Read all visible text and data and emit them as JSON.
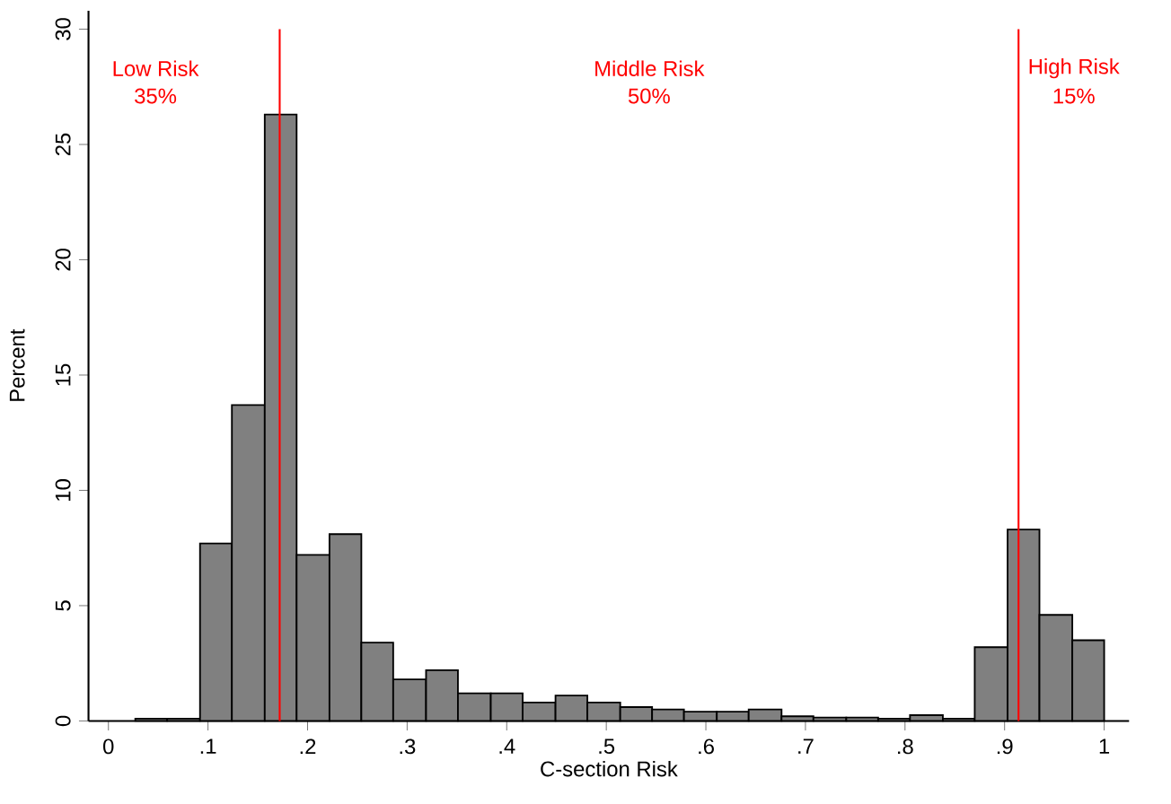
{
  "chart_data": {
    "type": "histogram",
    "xlabel": "C-section Risk",
    "ylabel": "Percent",
    "bins": [
      0.027,
      0.059,
      0.092,
      0.124,
      0.157,
      0.189,
      0.222,
      0.254,
      0.286,
      0.319,
      0.351,
      0.384,
      0.416,
      0.449,
      0.481,
      0.514,
      0.546,
      0.578,
      0.611,
      0.643,
      0.676,
      0.708,
      0.741,
      0.773,
      0.805,
      0.838,
      0.87,
      0.903,
      0.935,
      0.968,
      1.0
    ],
    "values": [
      0.1,
      0.1,
      7.7,
      13.7,
      26.3,
      7.2,
      8.1,
      3.4,
      1.8,
      2.2,
      1.2,
      1.2,
      0.8,
      1.1,
      0.8,
      0.6,
      0.5,
      0.4,
      0.4,
      0.5,
      0.2,
      0.15,
      0.15,
      0.1,
      0.25,
      0.1,
      3.2,
      8.3,
      4.6,
      3.5
    ],
    "color": "#808080",
    "xlim": [
      -0.02,
      1.025
    ],
    "ylim": [
      0,
      30.8
    ],
    "xticks": [
      0,
      {
        "value": 0.1,
        "label": ".1"
      },
      {
        "value": 0.2,
        "label": ".2"
      },
      {
        "value": 0.3,
        "label": ".3"
      },
      {
        "value": 0.4,
        "label": ".4"
      },
      {
        "value": 0.5,
        "label": ".5"
      },
      {
        "value": 0.6,
        "label": ".6"
      },
      {
        "value": 0.7,
        "label": ".7"
      },
      {
        "value": 0.8,
        "label": ".8"
      },
      {
        "value": 0.9,
        "label": ".9"
      },
      1
    ],
    "yticks": [
      0,
      5,
      10,
      15,
      20,
      25,
      30
    ],
    "grid": false,
    "ref_lines": [
      {
        "axis": "x",
        "value": 0.172,
        "color": "#ff0000"
      },
      {
        "axis": "x",
        "value": 0.914,
        "color": "#ff0000"
      }
    ],
    "annotations": [
      "Low Risk",
      "35%",
      "Middle Risk",
      "50%",
      "High Risk",
      "15%"
    ]
  }
}
